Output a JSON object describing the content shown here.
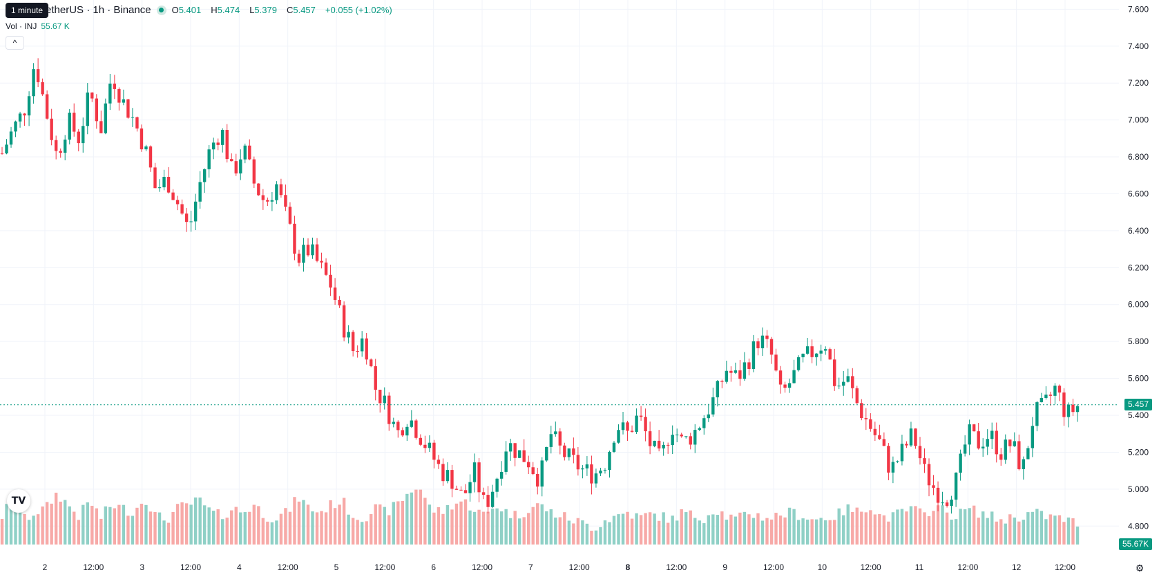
{
  "tooltip": "1 minute",
  "symbol": {
    "title": "etherUS · 1h · Binance",
    "open_label": "O",
    "open": "5.401",
    "high_label": "H",
    "high": "5.474",
    "low_label": "L",
    "low": "5.379",
    "close_label": "C",
    "close": "5.457",
    "change": "+0.055 (+1.02%)"
  },
  "volume_legend": {
    "label": "Vol · INJ",
    "value": "55.67 K"
  },
  "collapse_icon": "chevron-up-icon",
  "price_axis_labels": [
    "7.600",
    "7.400",
    "7.200",
    "7.000",
    "6.800",
    "6.600",
    "6.400",
    "6.200",
    "6.000",
    "5.800",
    "5.600",
    "5.400",
    "5.200",
    "5.000",
    "4.800"
  ],
  "time_axis_labels": [
    "2",
    "12:00",
    "3",
    "12:00",
    "4",
    "12:00",
    "5",
    "12:00",
    "6",
    "12:00",
    "7",
    "12:00",
    "8",
    "12:00",
    "9",
    "12:00",
    "10",
    "12:00",
    "11",
    "12:00",
    "12",
    "12:00"
  ],
  "last_price_tag": "5.457",
  "last_volume_tag": "55.67K",
  "colors": {
    "up": "#089981",
    "down": "#f23645",
    "up_vol": "#8fd0c6",
    "down_vol": "#f7a9a7",
    "grid": "#f0f3fa"
  },
  "chart_data": {
    "type": "candlestick",
    "y_axis_range": [
      4.7,
      7.65
    ],
    "close_path": [
      6.82,
      6.95,
      7.05,
      7.32,
      7.05,
      6.8,
      7.0,
      6.9,
      7.15,
      6.95,
      7.25,
      7.1,
      7.0,
      6.85,
      6.62,
      6.68,
      6.55,
      6.4,
      6.65,
      6.85,
      6.95,
      6.7,
      6.85,
      6.65,
      6.55,
      6.65,
      6.45,
      6.25,
      6.3,
      6.2,
      6.1,
      5.9,
      5.75,
      5.82,
      5.55,
      5.45,
      5.3,
      5.4,
      5.3,
      5.2,
      5.1,
      5.05,
      4.95,
      5.1,
      4.9,
      5.05,
      5.25,
      5.2,
      5.15,
      5.05,
      5.3,
      5.2,
      5.15,
      5.1,
      5.08,
      5.15,
      5.35,
      5.3,
      5.4,
      5.25,
      5.15,
      5.35,
      5.25,
      5.3,
      5.4,
      5.5,
      5.65,
      5.6,
      5.7,
      5.82,
      5.75,
      5.5,
      5.6,
      5.7,
      5.75,
      5.8,
      5.55,
      5.6,
      5.45,
      5.35,
      5.25,
      5.1,
      5.2,
      5.3,
      5.1,
      5.0,
      4.95,
      5.05,
      5.3,
      5.25,
      5.3,
      5.2,
      5.25,
      5.1,
      5.4,
      5.45,
      5.55,
      5.4,
      5.45
    ],
    "volume_path": [
      30,
      55,
      25,
      35,
      40,
      60,
      45,
      30,
      50,
      28,
      45,
      40,
      35,
      55,
      30,
      25,
      40,
      45,
      50,
      35,
      30,
      40,
      35,
      45,
      30,
      28,
      35,
      55,
      40,
      35,
      45,
      50,
      30,
      28,
      40,
      35,
      45,
      60,
      70,
      40,
      35,
      45,
      50,
      40,
      30,
      45,
      35,
      30,
      40,
      45,
      35,
      30,
      25,
      20,
      15,
      25,
      30,
      35,
      28,
      32,
      30,
      25,
      35,
      30,
      28,
      40,
      30,
      25,
      35,
      30,
      28,
      32,
      35,
      30,
      25,
      28,
      30,
      40,
      35,
      45,
      30,
      28,
      35,
      40,
      30,
      45,
      35,
      30,
      40,
      35,
      30,
      25,
      28,
      30,
      35,
      30,
      28,
      25,
      20
    ],
    "grid": true
  }
}
